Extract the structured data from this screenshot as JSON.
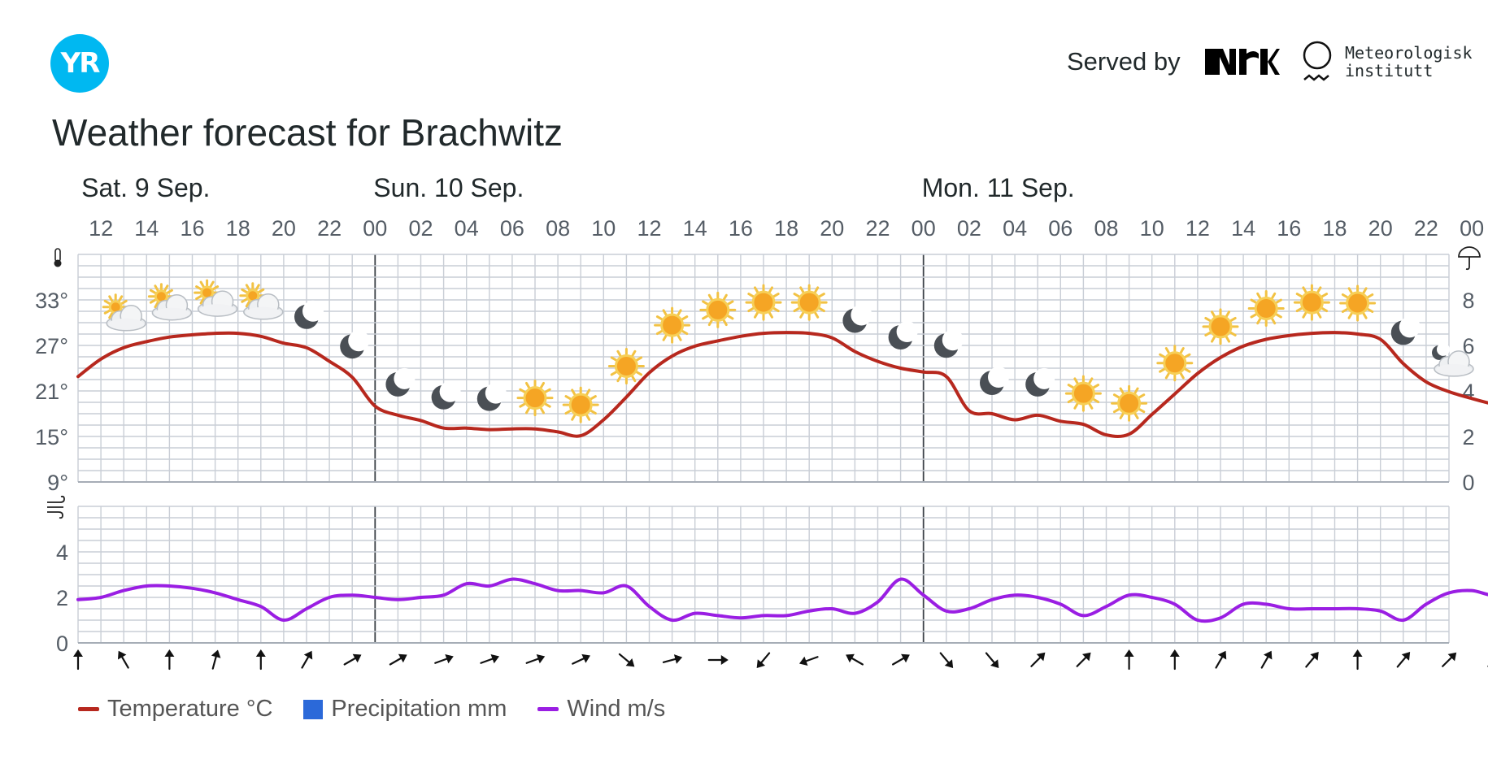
{
  "header": {
    "logo_text": "YR",
    "served_by": "Served by",
    "nrk_logo": "NRK",
    "met_logo_line1": "Meteorologisk",
    "met_logo_line2": "institutt",
    "title": "Weather forecast for Brachwitz"
  },
  "chart_data": {
    "type": "line",
    "days": [
      {
        "label": "Sat. 9 Sep.",
        "start_hour": 12
      },
      {
        "label": "Sun. 10 Sep.",
        "start_hour": 0
      },
      {
        "label": "Mon. 11 Sep.",
        "start_hour": 0
      }
    ],
    "hour_labels": [
      "12",
      "14",
      "16",
      "18",
      "20",
      "22",
      "00",
      "02",
      "04",
      "06",
      "08",
      "10",
      "12",
      "14",
      "16",
      "18",
      "20",
      "22",
      "00",
      "02",
      "04",
      "06",
      "08",
      "10",
      "12",
      "14",
      "16",
      "18",
      "20",
      "22",
      "00"
    ],
    "temp_axis_ticks": [
      "33°",
      "27°",
      "21°",
      "15°",
      "9°"
    ],
    "precip_axis_ticks": [
      "8",
      "6",
      "4",
      "2",
      "0"
    ],
    "wind_axis_ticks": [
      "4",
      "2",
      "0"
    ],
    "temp_ylim": [
      9,
      39
    ],
    "precip_ylim": [
      0,
      10
    ],
    "wind_ylim": [
      0,
      6
    ],
    "series": [
      {
        "name": "Temperature °C",
        "color": "#b7281e",
        "values": [
          22.9,
          25.2,
          26.7,
          27.5,
          28.1,
          28.4,
          28.6,
          28.6,
          28.2,
          27.3,
          26.7,
          24.9,
          22.8,
          19.0,
          17.8,
          17.1,
          16.1,
          16.1,
          15.9,
          16.0,
          16.0,
          15.6,
          15.1,
          17.2,
          20.2,
          23.4,
          25.6,
          26.9,
          27.6,
          28.2,
          28.6,
          28.7,
          28.6,
          28.0,
          26.2,
          24.9,
          24.0,
          23.5,
          22.9,
          18.4,
          18.0,
          17.2,
          17.8,
          17.0,
          16.6,
          15.2,
          15.3,
          17.9,
          20.6,
          23.3,
          25.4,
          26.9,
          27.8,
          28.3,
          28.6,
          28.7,
          28.5,
          27.8,
          24.6,
          22.2,
          20.9,
          20.0,
          19.2,
          18.5,
          17.9,
          17.5
        ]
      },
      {
        "name": "Precipitation mm",
        "color": "#2b69d9",
        "values": [
          0,
          0,
          0,
          0,
          0,
          0,
          0,
          0,
          0,
          0,
          0,
          0,
          0,
          0,
          0,
          0,
          0,
          0,
          0,
          0,
          0,
          0,
          0,
          0,
          0,
          0,
          0,
          0,
          0,
          0,
          0,
          0,
          0,
          0,
          0,
          0,
          0,
          0,
          0,
          0,
          0,
          0,
          0,
          0,
          0,
          0,
          0,
          0,
          0,
          0,
          0,
          0,
          0,
          0,
          0,
          0,
          0,
          0,
          0,
          0,
          0,
          0,
          0,
          0,
          0,
          0
        ]
      },
      {
        "name": "Wind m/s",
        "color": "#9a1ee3",
        "values": [
          1.9,
          2.0,
          2.3,
          2.5,
          2.5,
          2.4,
          2.2,
          1.9,
          1.6,
          1.0,
          1.5,
          2.0,
          2.1,
          2.0,
          1.9,
          2.0,
          2.1,
          2.6,
          2.5,
          2.8,
          2.6,
          2.3,
          2.3,
          2.2,
          2.5,
          1.6,
          1.0,
          1.3,
          1.2,
          1.1,
          1.2,
          1.2,
          1.4,
          1.5,
          1.3,
          1.8,
          2.8,
          2.1,
          1.4,
          1.5,
          1.9,
          2.1,
          2.0,
          1.7,
          1.2,
          1.6,
          2.1,
          2.0,
          1.7,
          1.0,
          1.1,
          1.7,
          1.7,
          1.5,
          1.5,
          1.5,
          1.5,
          1.4,
          1.0,
          1.7,
          2.2,
          2.3,
          2.1,
          2.5,
          2.6,
          2.4
        ]
      }
    ],
    "symbols": [
      {
        "hour": 13,
        "icon": "partly-cloudy-day-icon"
      },
      {
        "hour": 15,
        "icon": "partly-cloudy-day-icon"
      },
      {
        "hour": 17,
        "icon": "partly-cloudy-day-icon"
      },
      {
        "hour": 19,
        "icon": "partly-cloudy-day-icon"
      },
      {
        "hour": 21,
        "icon": "moon-icon"
      },
      {
        "hour": 23,
        "icon": "moon-icon"
      },
      {
        "hour": 25,
        "icon": "moon-icon"
      },
      {
        "hour": 27,
        "icon": "moon-icon"
      },
      {
        "hour": 29,
        "icon": "moon-icon"
      },
      {
        "hour": 31,
        "icon": "sun-icon"
      },
      {
        "hour": 33,
        "icon": "sun-icon"
      },
      {
        "hour": 35,
        "icon": "sun-icon"
      },
      {
        "hour": 37,
        "icon": "sun-icon"
      },
      {
        "hour": 39,
        "icon": "sun-icon"
      },
      {
        "hour": 41,
        "icon": "sun-icon"
      },
      {
        "hour": 43,
        "icon": "sun-icon"
      },
      {
        "hour": 45,
        "icon": "moon-icon"
      },
      {
        "hour": 47,
        "icon": "moon-icon"
      },
      {
        "hour": 49,
        "icon": "moon-icon"
      },
      {
        "hour": 51,
        "icon": "moon-icon"
      },
      {
        "hour": 53,
        "icon": "moon-icon"
      },
      {
        "hour": 55,
        "icon": "sun-icon"
      },
      {
        "hour": 57,
        "icon": "sun-icon"
      },
      {
        "hour": 59,
        "icon": "sun-icon"
      },
      {
        "hour": 61,
        "icon": "sun-icon"
      },
      {
        "hour": 63,
        "icon": "sun-icon"
      },
      {
        "hour": 65,
        "icon": "sun-icon"
      },
      {
        "hour": 67,
        "icon": "sun-icon"
      },
      {
        "hour": 69,
        "icon": "moon-icon"
      },
      {
        "hour": 71,
        "icon": "partly-cloudy-night-icon"
      }
    ],
    "wind_directions_deg": [
      0,
      330,
      0,
      15,
      0,
      30,
      60,
      60,
      70,
      70,
      70,
      65,
      130,
      75,
      90,
      220,
      250,
      300,
      60,
      140,
      140,
      45,
      45,
      0,
      0,
      30,
      30,
      40,
      0,
      40,
      45,
      45
    ],
    "grid": true,
    "legend_position": "bottom-left"
  }
}
